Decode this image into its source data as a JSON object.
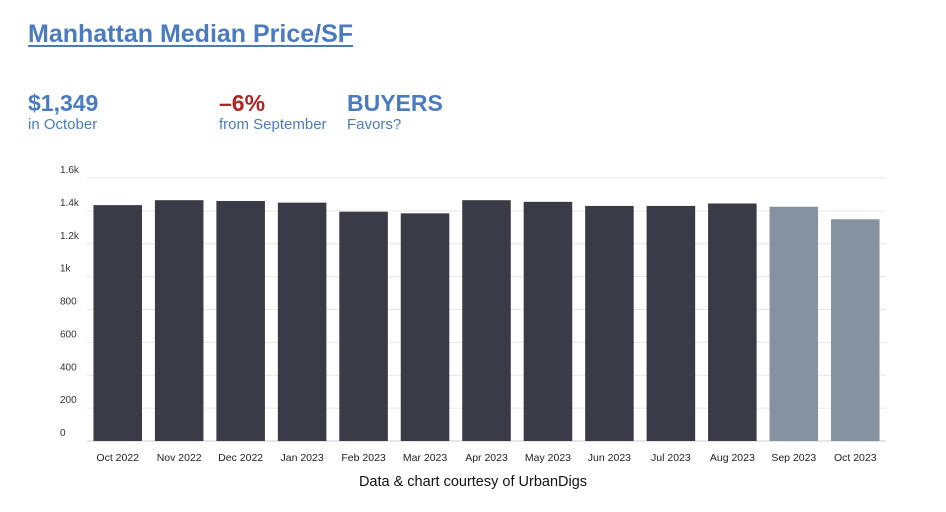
{
  "title": "Manhattan Median Price/SF",
  "stats": {
    "price": {
      "value": "$1,349",
      "caption": "in October",
      "color": "#4a7bbf"
    },
    "change": {
      "value": "–6%",
      "caption": "from September",
      "color": "#b22222",
      "caption_color": "#4a7bbf"
    },
    "favors": {
      "value": "BUYERS",
      "caption": "Favors?",
      "color": "#4a7bbf"
    }
  },
  "credit": "Data & chart courtesy of UrbanDigs",
  "chart_data": {
    "type": "bar",
    "categories": [
      "Oct 2022",
      "Nov 2022",
      "Dec 2022",
      "Jan 2023",
      "Feb 2023",
      "Mar 2023",
      "Apr 2023",
      "May 2023",
      "Jun 2023",
      "Jul 2023",
      "Aug 2023",
      "Sep 2023",
      "Oct 2023"
    ],
    "values": [
      1435,
      1465,
      1460,
      1450,
      1395,
      1385,
      1465,
      1455,
      1430,
      1430,
      1445,
      1425,
      1349
    ],
    "ylim": [
      0,
      1600
    ],
    "yticks": [
      0,
      200,
      400,
      600,
      800,
      1000,
      1200,
      1400,
      1600
    ],
    "ytick_labels": [
      "0",
      "200",
      "400",
      "600",
      "800",
      "1k",
      "1.2k",
      "1.4k",
      "1.6k"
    ],
    "xlabel": "",
    "ylabel": "",
    "grid": true,
    "colors": {
      "primary": "#3b3b47",
      "recent": "#84939f",
      "grid": "#e6e6e6",
      "axis": "#cccccc"
    },
    "recent_count": 2
  }
}
